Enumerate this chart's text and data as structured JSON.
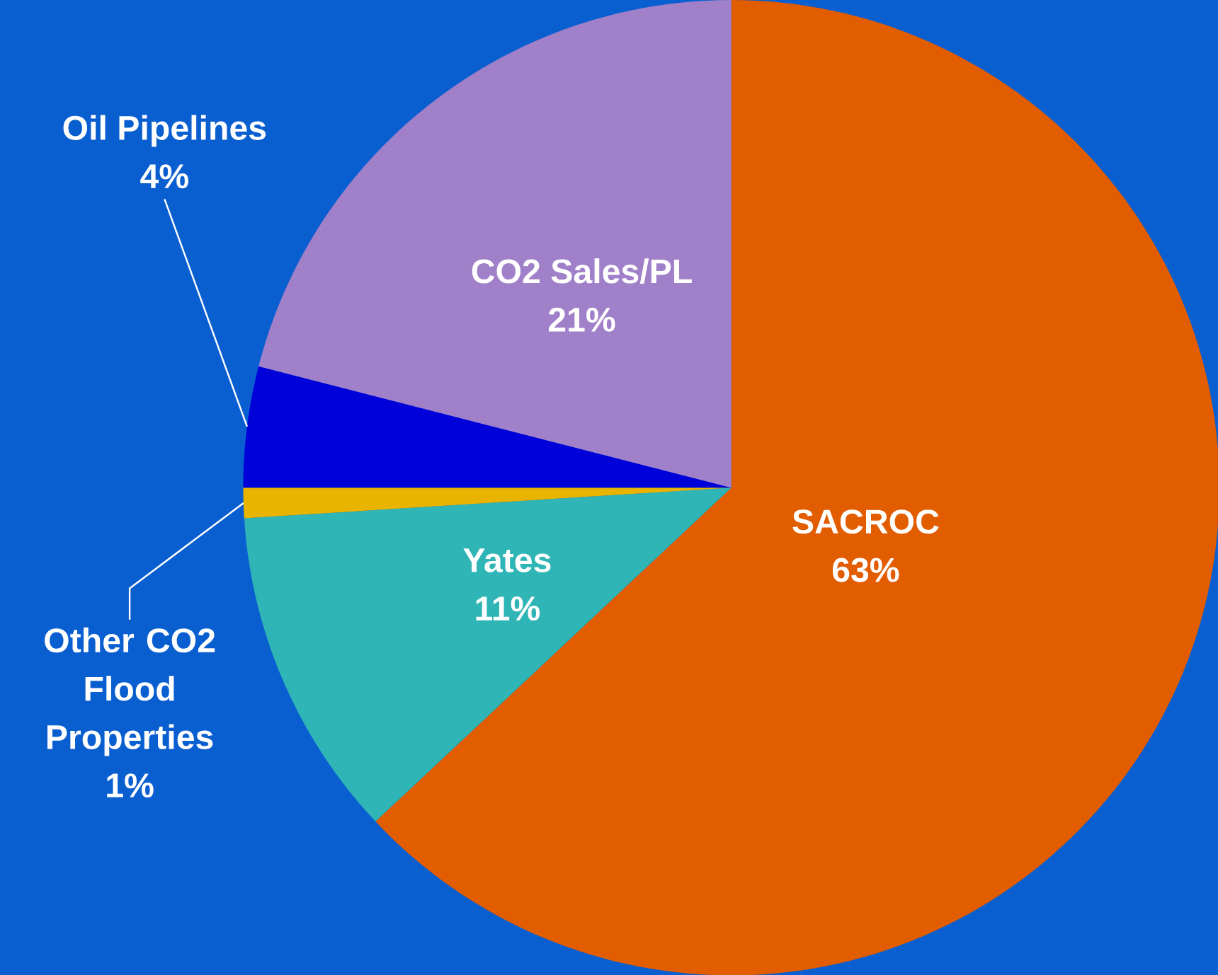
{
  "chart_data": {
    "type": "pie",
    "categories": [
      "SACROC",
      "Yates",
      "Other CO2 Flood Properties",
      "Oil Pipelines",
      "CO2 Sales/PL"
    ],
    "values": [
      63,
      11,
      1,
      4,
      21
    ],
    "value_labels": [
      "63%",
      "11%",
      "1%",
      "4%",
      "21%"
    ],
    "colors": [
      "#e25c00",
      "#2fb5b5",
      "#e8b400",
      "#0000d8",
      "#a080c8"
    ]
  }
}
